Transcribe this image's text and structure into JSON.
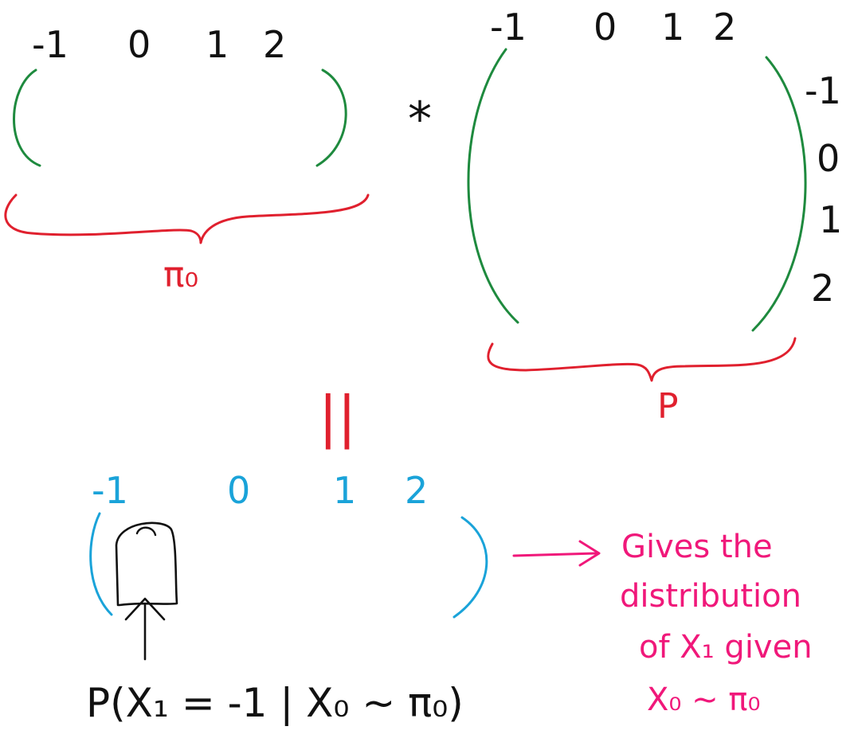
{
  "colors": {
    "ink": "#111111",
    "matrix_green": "#1e8a3e",
    "brace_red": "#e0202e",
    "result_blue": "#1aa3d9",
    "note_pink": "#f0187a"
  },
  "pi0_vector": {
    "states": [
      "-1",
      "0",
      "1",
      "2"
    ],
    "label": "π₀"
  },
  "operator": "*",
  "transition_matrix": {
    "col_states": [
      "-1",
      "0",
      "1",
      "2"
    ],
    "row_states": [
      "-1",
      "0",
      "1",
      "2"
    ],
    "label": "P"
  },
  "equals": "||",
  "result_vector": {
    "states": [
      "-1",
      "0",
      "1",
      "2"
    ],
    "first_entry_label": "P(X₁ = -1 | X₀ ~ π₀)"
  },
  "note": {
    "lines": [
      "Gives the",
      "distribution",
      "of X₁ given",
      "X₀ ~ π₀"
    ]
  }
}
